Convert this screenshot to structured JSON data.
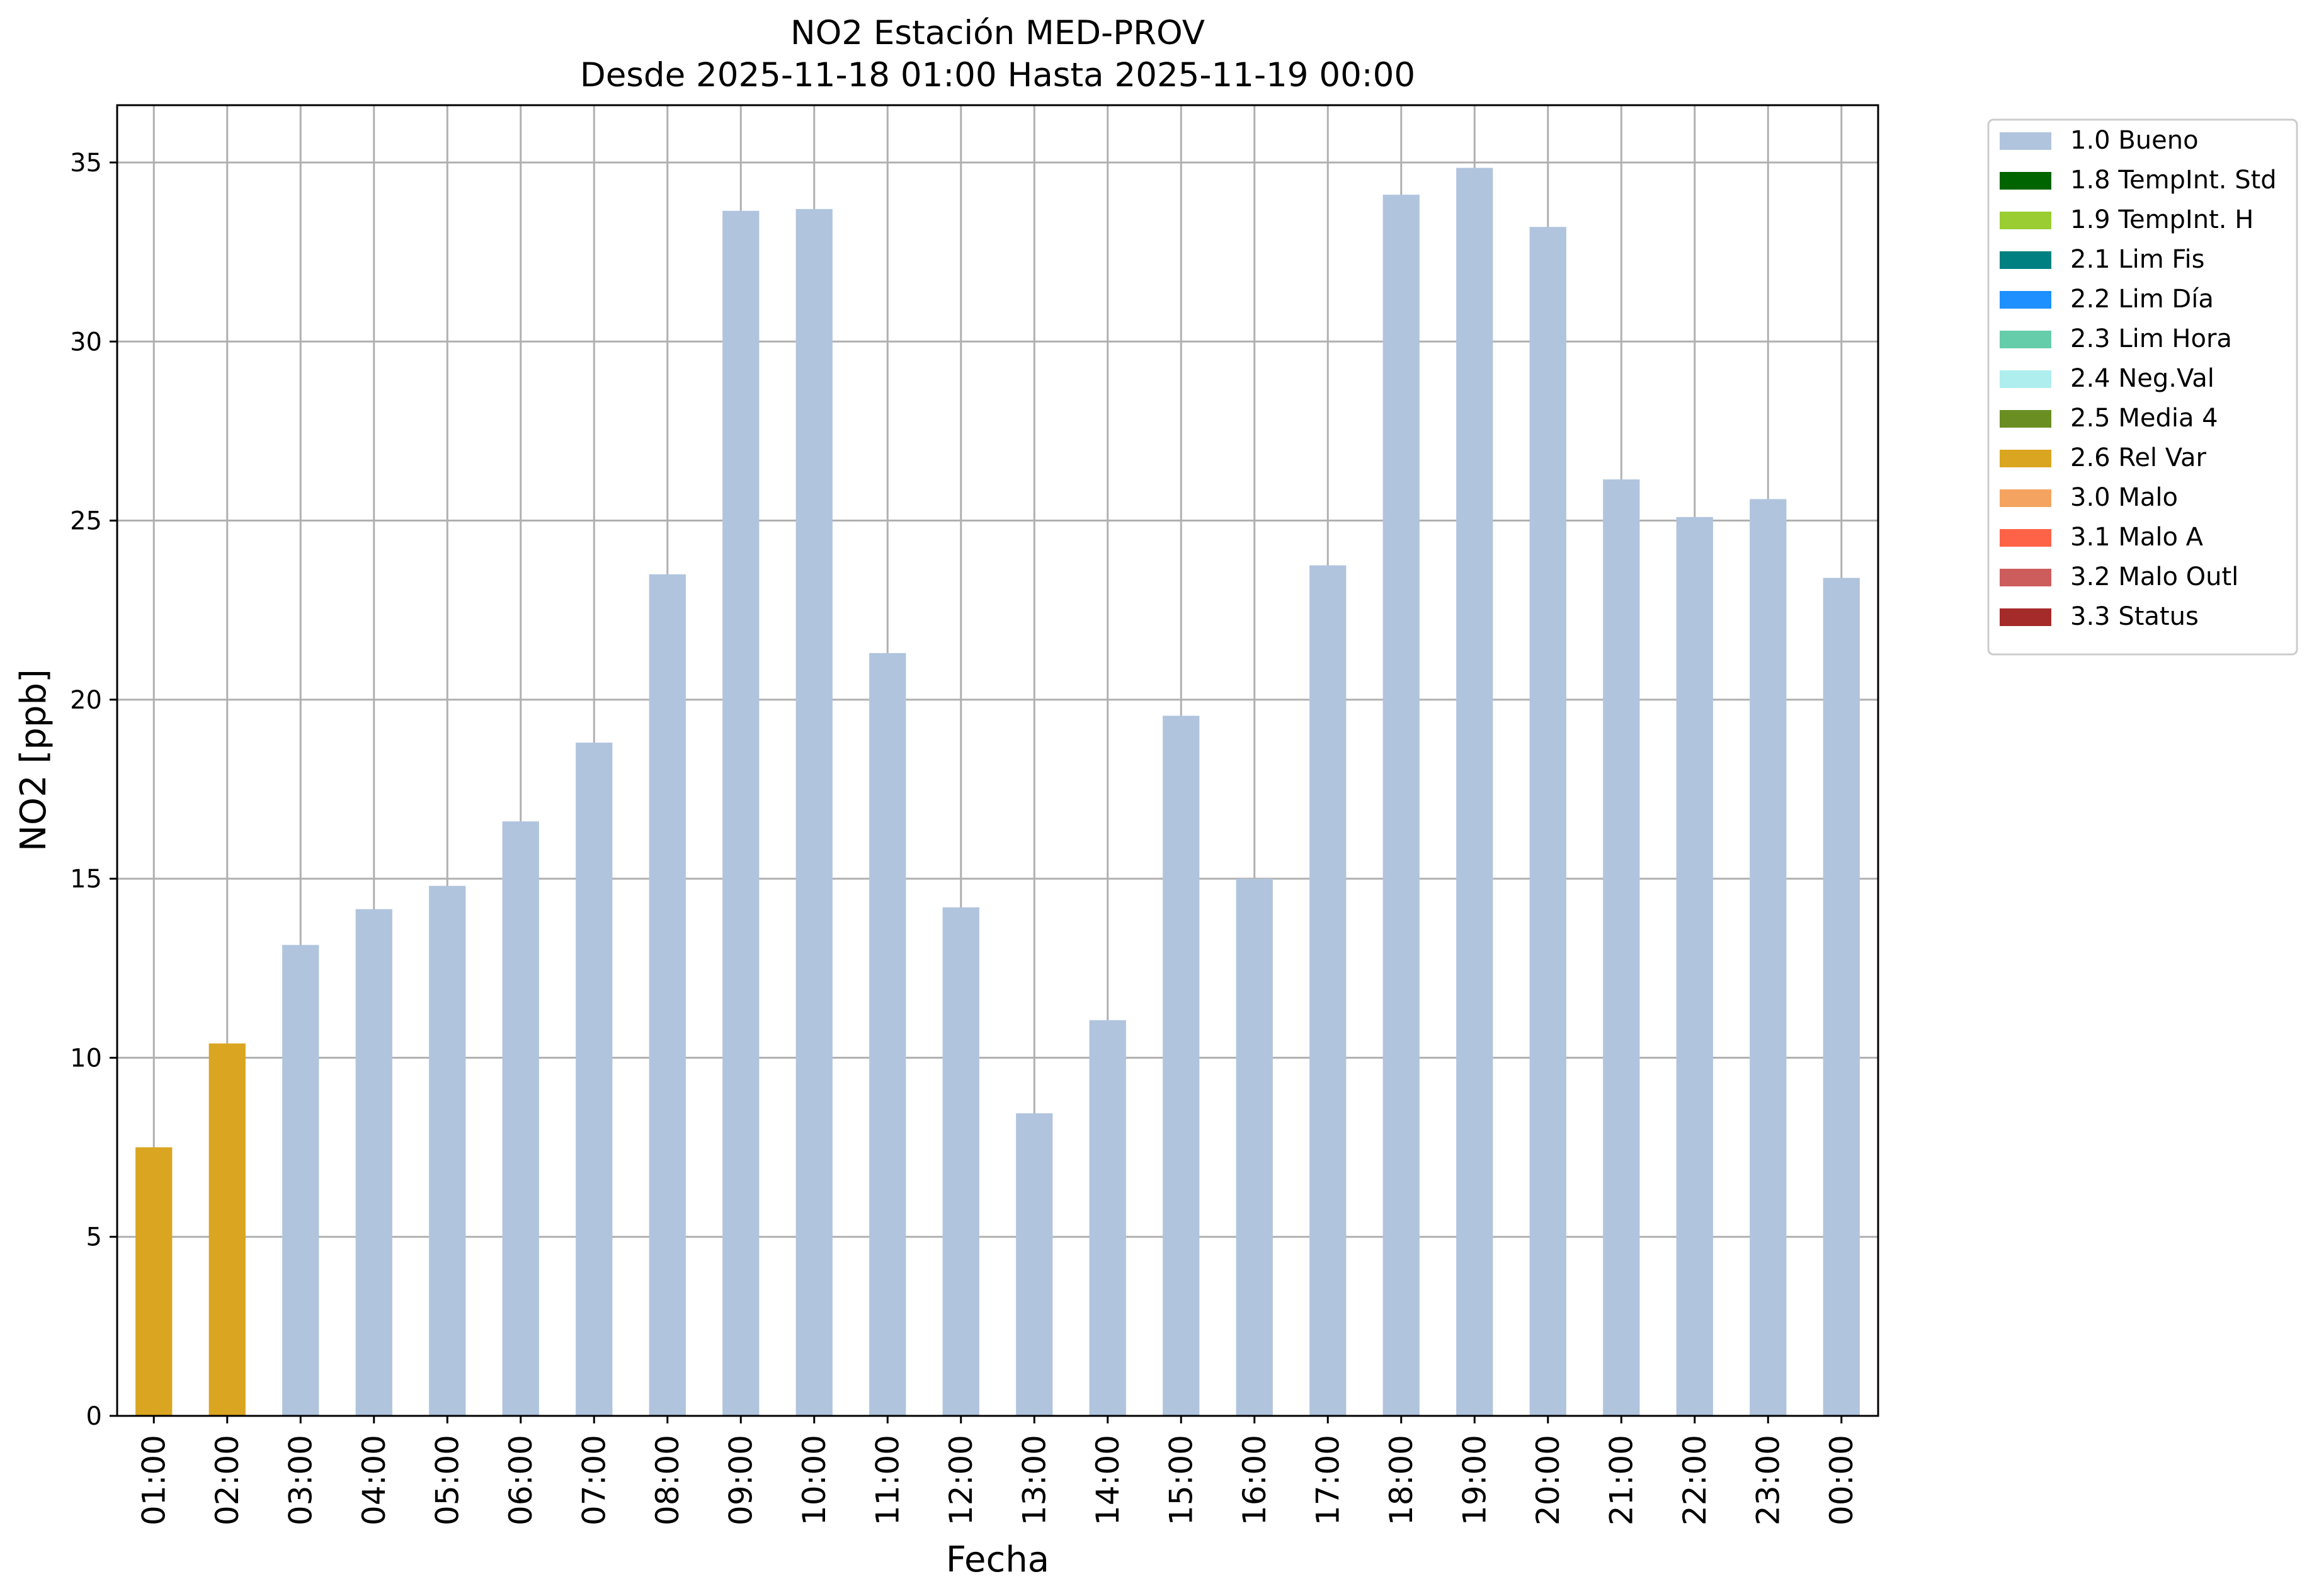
{
  "chart_data": {
    "type": "bar",
    "title_line1": "NO2 Estación MED-PROV",
    "title_line2": "Desde 2025-11-18 01:00 Hasta 2025-11-19 00:00",
    "xlabel": "Fecha",
    "ylabel": "NO2 [ppb]",
    "ylim": [
      0,
      36.6
    ],
    "yticks": [
      0,
      5,
      10,
      15,
      20,
      25,
      30,
      35
    ],
    "grid": true,
    "legend_position": "outside-top-right",
    "categories": [
      "01:00",
      "02:00",
      "03:00",
      "04:00",
      "05:00",
      "06:00",
      "07:00",
      "08:00",
      "09:00",
      "10:00",
      "11:00",
      "12:00",
      "13:00",
      "14:00",
      "15:00",
      "16:00",
      "17:00",
      "18:00",
      "19:00",
      "20:00",
      "21:00",
      "22:00",
      "23:00",
      "00:00"
    ],
    "values": [
      7.5,
      10.4,
      13.15,
      14.15,
      14.8,
      16.6,
      18.8,
      23.5,
      33.65,
      33.7,
      21.3,
      14.2,
      8.45,
      11.05,
      19.55,
      15.0,
      23.75,
      34.1,
      34.85,
      33.2,
      26.15,
      25.1,
      25.6,
      23.4
    ],
    "flags": [
      "2.6 Rel Var",
      "2.6 Rel Var",
      "1.0 Bueno",
      "1.0 Bueno",
      "1.0 Bueno",
      "1.0 Bueno",
      "1.0 Bueno",
      "1.0 Bueno",
      "1.0 Bueno",
      "1.0 Bueno",
      "1.0 Bueno",
      "1.0 Bueno",
      "1.0 Bueno",
      "1.0 Bueno",
      "1.0 Bueno",
      "1.0 Bueno",
      "1.0 Bueno",
      "1.0 Bueno",
      "1.0 Bueno",
      "1.0 Bueno",
      "1.0 Bueno",
      "1.0 Bueno",
      "1.0 Bueno",
      "1.0 Bueno"
    ],
    "legend": [
      {
        "label": "1.0 Bueno",
        "color": "#b0c4de"
      },
      {
        "label": "1.8 TempInt. Std",
        "color": "#006400"
      },
      {
        "label": "1.9 TempInt. H",
        "color": "#9acd32"
      },
      {
        "label": "2.1 Lim Fis",
        "color": "#008080"
      },
      {
        "label": "2.2 Lim Día",
        "color": "#1e90ff"
      },
      {
        "label": "2.3 Lim Hora",
        "color": "#66cdaa"
      },
      {
        "label": "2.4 Neg.Val",
        "color": "#afeeee"
      },
      {
        "label": "2.5 Media 4",
        "color": "#6b8e23"
      },
      {
        "label": "2.6 Rel Var",
        "color": "#daa520"
      },
      {
        "label": "3.0 Malo",
        "color": "#f4a460"
      },
      {
        "label": "3.1 Malo A",
        "color": "#ff6347"
      },
      {
        "label": "3.2 Malo Outl",
        "color": "#cd5c5c"
      },
      {
        "label": "3.3 Status",
        "color": "#a52a2a"
      }
    ]
  }
}
